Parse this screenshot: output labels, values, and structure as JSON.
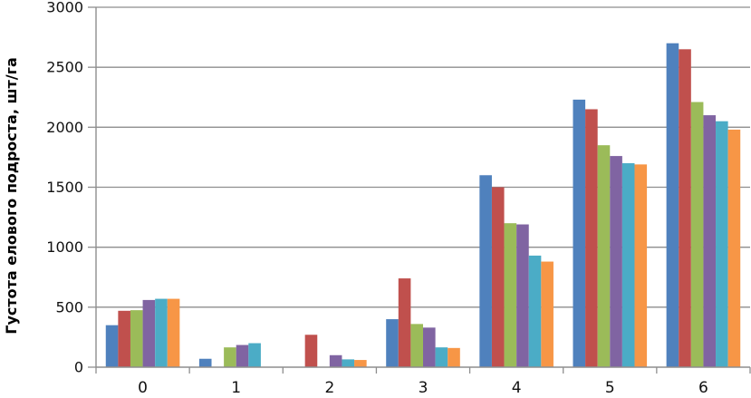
{
  "chart_data": {
    "type": "bar",
    "title": "",
    "ylabel": "Густота елового подроста, шт/га",
    "xlabel": "",
    "categories": [
      "0",
      "1",
      "2",
      "3",
      "4",
      "5",
      "6"
    ],
    "series": [
      {
        "name": "series-1-blue",
        "color": "#4f81bd",
        "values": [
          350,
          70,
          0,
          400,
          1600,
          2230,
          2700
        ]
      },
      {
        "name": "series-2-red",
        "color": "#c0504d",
        "values": [
          470,
          0,
          270,
          740,
          1500,
          2150,
          2650
        ]
      },
      {
        "name": "series-3-green",
        "color": "#9bbb59",
        "values": [
          475,
          165,
          0,
          360,
          1200,
          1850,
          2210
        ]
      },
      {
        "name": "series-4-purple",
        "color": "#8064a2",
        "values": [
          560,
          185,
          100,
          330,
          1190,
          1760,
          2100
        ]
      },
      {
        "name": "series-5-teal",
        "color": "#4bacc6",
        "values": [
          570,
          200,
          65,
          165,
          930,
          1700,
          2050
        ]
      },
      {
        "name": "series-6-orange",
        "color": "#f79646",
        "values": [
          570,
          0,
          60,
          160,
          880,
          1690,
          1980
        ]
      }
    ],
    "ylim": [
      0,
      3000
    ],
    "ytick_step": 500,
    "yticks": [
      0,
      500,
      1000,
      1500,
      2000,
      2500,
      3000
    ],
    "grid": true,
    "legend": "none",
    "colors": {
      "grid": "#8e8e8e",
      "axis": "#8e8e8e",
      "text": "#111111",
      "background": "#ffffff"
    }
  }
}
